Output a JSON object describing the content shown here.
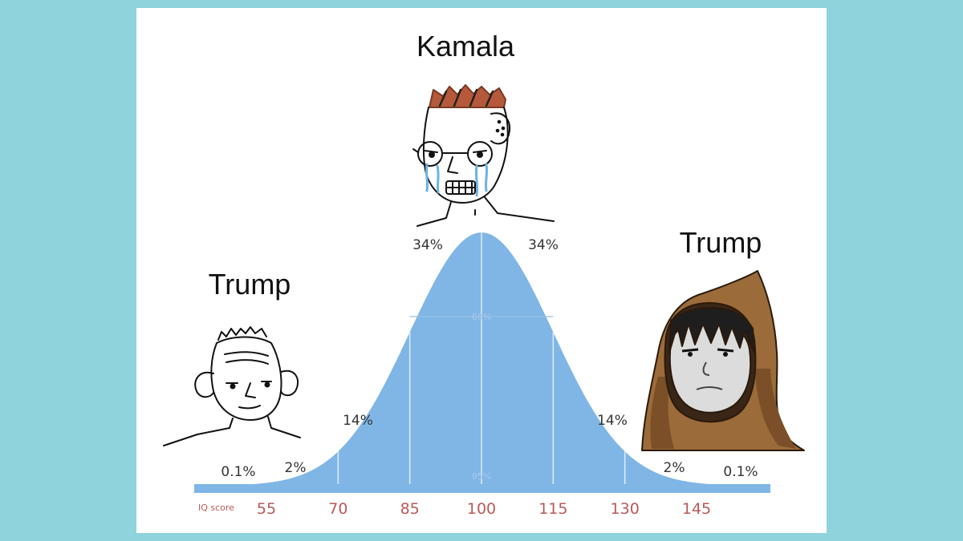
{
  "labels": {
    "top": "Kamala",
    "left": "Trump",
    "right": "Trump"
  },
  "chart_data": {
    "type": "area",
    "title": "",
    "xlabel": "IQ score",
    "x_ticks": [
      "55",
      "70",
      "85",
      "100",
      "115",
      "130",
      "145"
    ],
    "segment_percentages": [
      "0.1%",
      "2%",
      "14%",
      "34%",
      "34%",
      "14%",
      "2%",
      "0.1%"
    ],
    "inner_annotations": [
      "68%",
      "95%"
    ],
    "mean": 100,
    "sd": 15,
    "xlim": [
      45,
      165
    ]
  },
  "colors": {
    "background": "#8fd3dc",
    "panel": "#ffffff",
    "curve_fill": "#7fb6e6",
    "axis_bar": "#7fb6e6",
    "tick_text": "#b85a58",
    "hood": "#9b6b3a"
  },
  "characters": [
    {
      "name": "crying-wojak",
      "position_label": "top"
    },
    {
      "name": "simple-wojak",
      "position_label": "left"
    },
    {
      "name": "hooded-wojak",
      "position_label": "right"
    }
  ]
}
